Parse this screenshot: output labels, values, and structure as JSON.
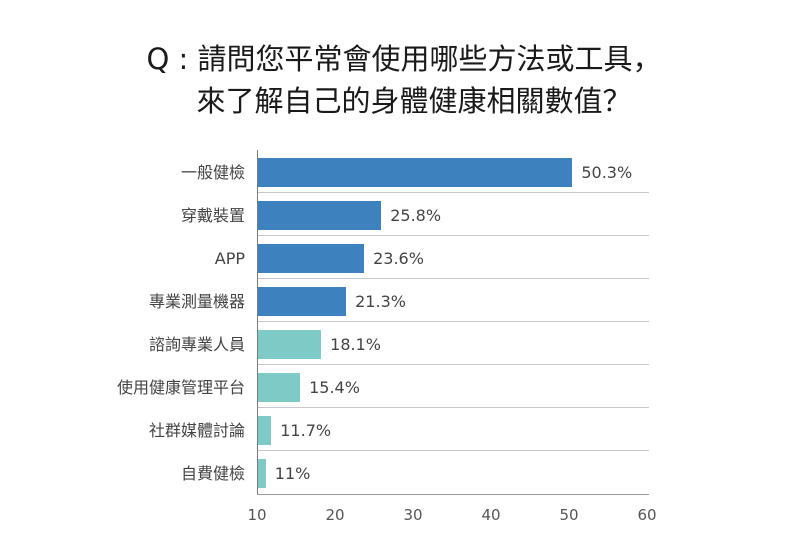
{
  "title": {
    "line1": "Q : 請問您平常會使用哪些方法或工具，",
    "line2": "來了解自己的身體健康相關數值？"
  },
  "colors": {
    "primary": "#3d82bf",
    "secondary": "#7ecac6"
  },
  "chart_data": {
    "type": "bar",
    "orientation": "horizontal",
    "title": "Q : 請問您平常會使用哪些方法或工具，來了解自己的身體健康相關數值？",
    "xlabel": "",
    "ylabel": "",
    "xlim": [
      10,
      60
    ],
    "xticks": [
      "10",
      "20",
      "30",
      "40",
      "50",
      "60"
    ],
    "grid": false,
    "categories": [
      "一般健檢",
      "穿戴裝置",
      "APP",
      "專業測量機器",
      "諮詢專業人員",
      "使用健康管理平台",
      "社群媒體討論",
      "自費健檢"
    ],
    "values": [
      50.3,
      25.8,
      23.6,
      21.3,
      18.1,
      15.4,
      11.7,
      11
    ],
    "labels": [
      "50.3%",
      "25.8%",
      "23.6%",
      "21.3%",
      "18.1%",
      "15.4%",
      "11.7%",
      "11%"
    ],
    "bar_colors": [
      "#3d82bf",
      "#3d82bf",
      "#3d82bf",
      "#3d82bf",
      "#7ecac6",
      "#7ecac6",
      "#7ecac6",
      "#7ecac6"
    ]
  }
}
